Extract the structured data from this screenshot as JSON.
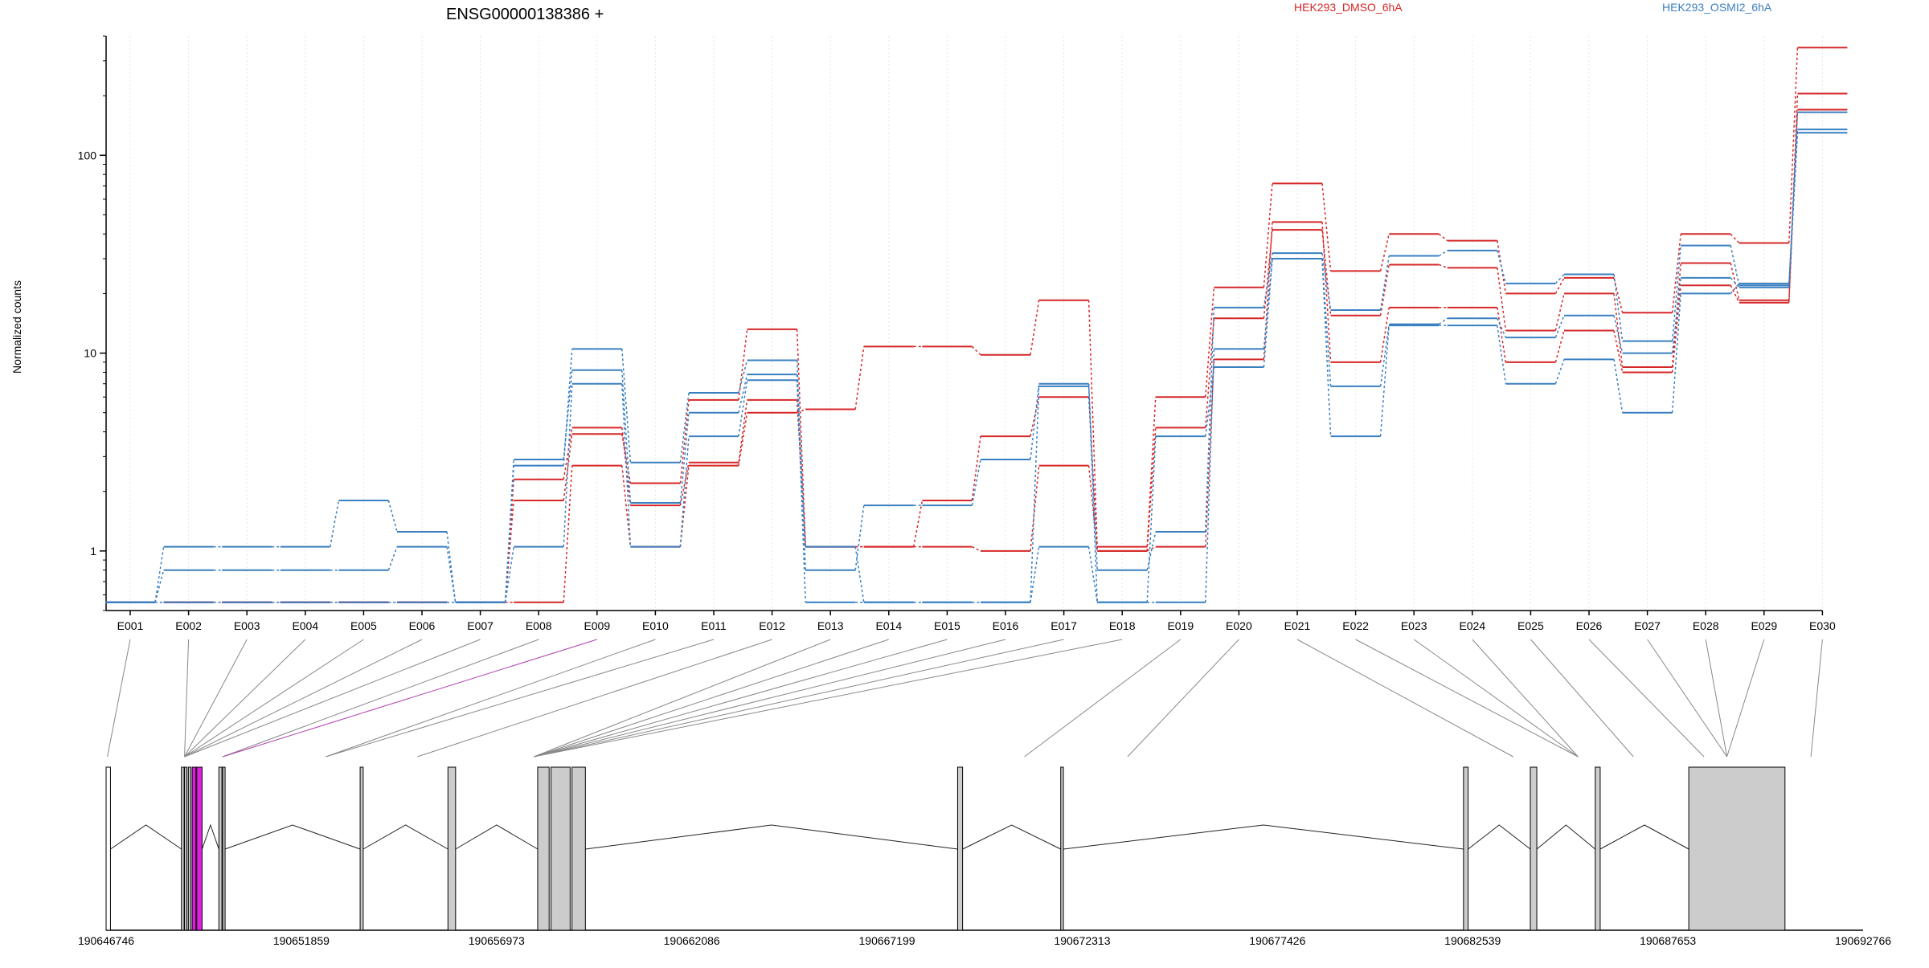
{
  "chart_data": {
    "type": "line",
    "title": "ENSG00000138386 +",
    "ylabel": "Normalized counts",
    "yscale": "log",
    "ylim": [
      0.5,
      400
    ],
    "yticks": [
      1,
      10,
      100
    ],
    "ytick_labels": [
      "1",
      "10",
      "100"
    ],
    "grid": "vertical dotted lines at each exon",
    "legend_position": "top",
    "colors": {
      "HEK293_DMSO_6hA": "#d62728",
      "HEK293_OSMI2_6hA": "#3a7fc1",
      "overlap": "#555577",
      "highlight_exon": "#e020e0",
      "exon_fill": "#cccccc"
    },
    "categories": [
      "E001",
      "E002",
      "E003",
      "E004",
      "E005",
      "E006",
      "E007",
      "E008",
      "E009",
      "E010",
      "E011",
      "E012",
      "E013",
      "E014",
      "E015",
      "E016",
      "E017",
      "E018",
      "E019",
      "E020",
      "E021",
      "E022",
      "E023",
      "E024",
      "E025",
      "E026",
      "E027",
      "E028",
      "E029",
      "E030"
    ],
    "series": [
      {
        "name": "HEK293_DMSO_6hA",
        "values": [
          0.55,
          0.55,
          0.55,
          0.55,
          0.55,
          0.55,
          0.55,
          0.55,
          2.7,
          1.05,
          2.7,
          5.0,
          5.2,
          10.8,
          10.8,
          9.8,
          18.5,
          1.05,
          6.0,
          21.5,
          72,
          26,
          40,
          37,
          20,
          24,
          16,
          40,
          36,
          350
        ]
      },
      {
        "name": "HEK293_DMSO_6hA",
        "values": [
          0.55,
          0.55,
          0.55,
          0.55,
          0.55,
          0.55,
          0.55,
          1.8,
          3.9,
          2.2,
          5.8,
          13.2,
          1.05,
          1.05,
          1.8,
          3.8,
          6.0,
          1.0,
          4.2,
          15,
          42,
          15.5,
          28,
          27,
          13,
          20,
          8.5,
          28.5,
          18.5,
          205
        ]
      },
      {
        "name": "HEK293_DMSO_6hA",
        "values": [
          0.55,
          0.55,
          0.55,
          0.55,
          0.55,
          0.55,
          0.55,
          2.3,
          4.2,
          1.7,
          2.8,
          5.8,
          1.05,
          1.05,
          1.05,
          1.0,
          2.7,
          1.0,
          1.05,
          9.3,
          46,
          9.0,
          17,
          17,
          9.0,
          13,
          8.0,
          22,
          18,
          170
        ]
      },
      {
        "name": "HEK293_OSMI2_6hA",
        "values": [
          0.55,
          1.05,
          1.05,
          1.05,
          1.8,
          1.25,
          0.55,
          2.7,
          10.5,
          2.8,
          6.3,
          9.2,
          0.8,
          1.7,
          1.7,
          2.9,
          7.0,
          0.8,
          1.25,
          17,
          32,
          16.5,
          31,
          33,
          22.5,
          25,
          11.5,
          35,
          22,
          165
        ]
      },
      {
        "name": "HEK293_OSMI2_6hA",
        "values": [
          0.55,
          0.8,
          0.8,
          0.8,
          0.8,
          1.05,
          0.55,
          2.9,
          8.2,
          1.75,
          5.0,
          7.8,
          0.55,
          0.55,
          0.55,
          0.55,
          6.8,
          0.55,
          0.55,
          10.5,
          30,
          6.8,
          14,
          15,
          12,
          15.5,
          10,
          24,
          21.5,
          135
        ]
      },
      {
        "name": "HEK293_OSMI2_6hA",
        "values": [
          0.55,
          0.55,
          0.55,
          0.55,
          0.55,
          0.55,
          0.55,
          1.05,
          7.0,
          1.05,
          3.8,
          7.3,
          1.05,
          0.55,
          0.55,
          0.55,
          1.05,
          0.55,
          3.8,
          8.5,
          30,
          3.8,
          13.8,
          13.8,
          7.0,
          9.3,
          5.0,
          20,
          22.5,
          130
        ]
      }
    ],
    "genomic_axis": {
      "tick_labels": [
        "190646746",
        "190651859",
        "190656973",
        "190662086",
        "190667199",
        "190672313",
        "190677426",
        "190682539",
        "190687653",
        "190692766"
      ],
      "tick_values": [
        190646746,
        190651859,
        190656973,
        190662086,
        190667199,
        190672313,
        190677426,
        190682539,
        190687653,
        190692766
      ],
      "exon_map_genomic": [
        190646780,
        190648800,
        190648800,
        190648800,
        190648800,
        190648800,
        190648800,
        190649800,
        190649800,
        190652500,
        190652500,
        190654900,
        190657950,
        190657950,
        190657950,
        190657950,
        190657950,
        190657950,
        190670800,
        190673500,
        190683600,
        190685300,
        190685300,
        190685300,
        190686750,
        190688600
      ]
    },
    "gene_model_exons": [
      {
        "start": 190646746,
        "end": 190646860,
        "fill": "#ffffff"
      },
      {
        "start": 190648720,
        "end": 190648790,
        "fill": "#cccccc"
      },
      {
        "start": 190648800,
        "end": 190648860,
        "fill": "#cccccc"
      },
      {
        "start": 190648900,
        "end": 190648960,
        "fill": "#cccccc"
      },
      {
        "start": 190649000,
        "end": 190649100,
        "fill": "#e020e0"
      },
      {
        "start": 190649120,
        "end": 190649260,
        "fill": "#e020e0"
      },
      {
        "start": 190649700,
        "end": 190649780,
        "fill": "#cccccc"
      },
      {
        "start": 190649800,
        "end": 190649860,
        "fill": "#cccccc"
      },
      {
        "start": 190653400,
        "end": 190653480,
        "fill": "#cccccc"
      },
      {
        "start": 190655700,
        "end": 190655900,
        "fill": "#cccccc"
      },
      {
        "start": 190658050,
        "end": 190658350,
        "fill": "#cccccc"
      },
      {
        "start": 190658400,
        "end": 190658900,
        "fill": "#cccccc"
      },
      {
        "start": 190658950,
        "end": 190659300,
        "fill": "#cccccc"
      },
      {
        "start": 190669050,
        "end": 190669180,
        "fill": "#cccccc"
      },
      {
        "start": 190671750,
        "end": 190671820,
        "fill": "#cccccc"
      },
      {
        "start": 190682300,
        "end": 190682420,
        "fill": "#cccccc"
      },
      {
        "start": 190684050,
        "end": 190684220,
        "fill": "#cccccc"
      },
      {
        "start": 190685750,
        "end": 190685880,
        "fill": "#cccccc"
      },
      {
        "start": 190688200,
        "end": 190690720,
        "fill": "#cccccc"
      }
    ]
  }
}
